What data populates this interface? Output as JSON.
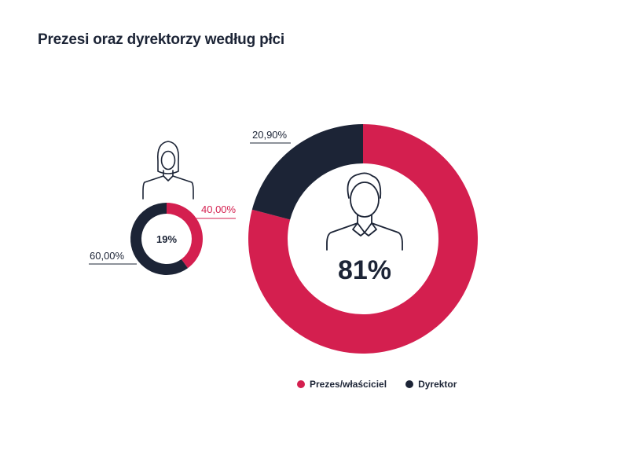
{
  "title": "Prezesi oraz dyrektorzy według płci",
  "colors": {
    "prezes": "#d41f4f",
    "dyrektor": "#1c2436"
  },
  "legend": [
    {
      "label": "Prezes/właściciel",
      "color": "#d41f4f"
    },
    {
      "label": "Dyrektor",
      "color": "#1c2436"
    }
  ],
  "chart_data": [
    {
      "type": "pie",
      "group_icon": "woman-icon",
      "center_label": "19%",
      "slices": [
        {
          "name": "Prezes/właściciel",
          "value": 40.0,
          "label": "40,00%",
          "color": "#d41f4f"
        },
        {
          "name": "Dyrektor",
          "value": 60.0,
          "label": "60,00%",
          "color": "#1c2436"
        }
      ]
    },
    {
      "type": "pie",
      "group_icon": "man-icon",
      "center_label": "81%",
      "slices": [
        {
          "name": "Prezes/właściciel",
          "value": 79.1,
          "label": "",
          "color": "#d41f4f"
        },
        {
          "name": "Dyrektor",
          "value": 20.9,
          "label": "20,90%",
          "color": "#1c2436"
        }
      ]
    }
  ]
}
